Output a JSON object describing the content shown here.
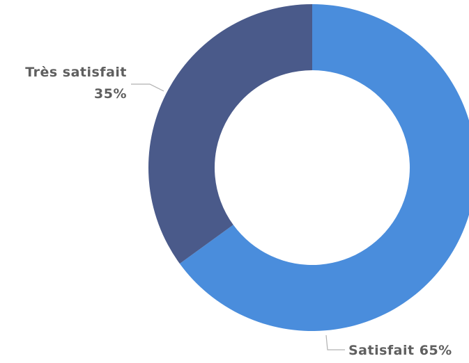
{
  "chart_data": {
    "type": "donut",
    "categories": [
      "Satisfait",
      "Très satisfait"
    ],
    "values": [
      65,
      35
    ],
    "value_labels": [
      "65%",
      "35%"
    ],
    "colors": [
      "#4a8ddc",
      "#4a5a8a"
    ]
  }
}
